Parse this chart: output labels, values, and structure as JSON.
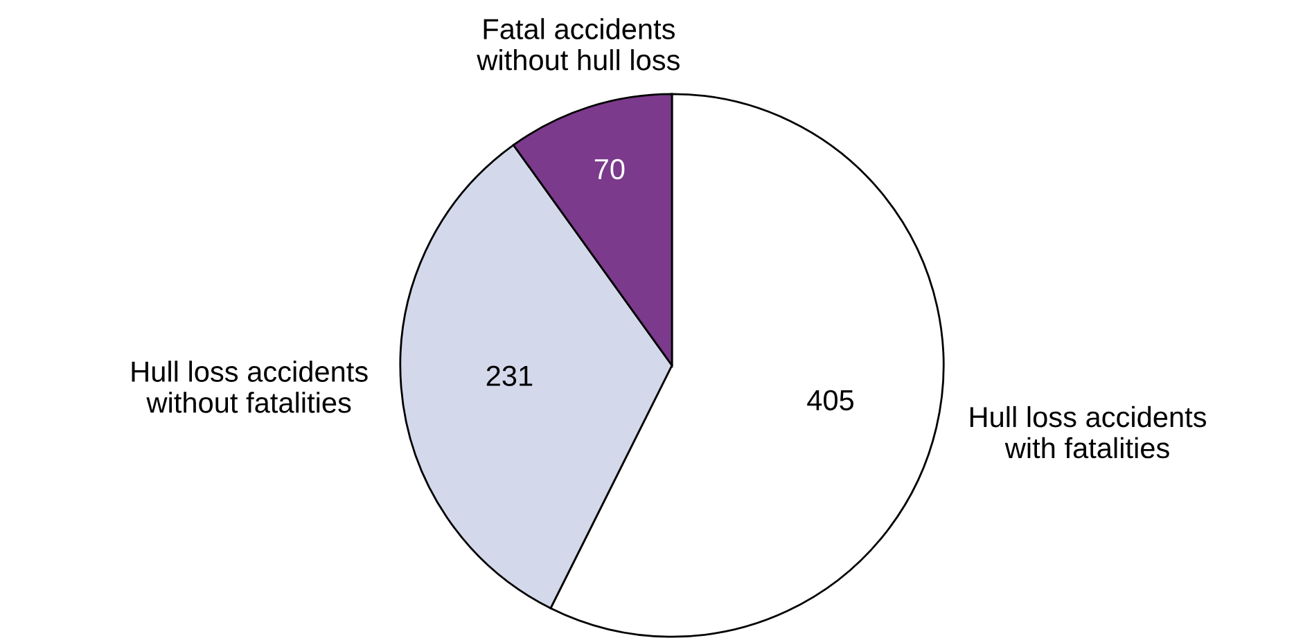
{
  "chart_data": {
    "type": "pie",
    "categories": [
      "Hull loss accidents\nwith fatalities",
      "Hull loss accidents\nwithout fatalities",
      "Fatal accidents\nwithout hull loss"
    ],
    "values": [
      405,
      231,
      70
    ],
    "colors": [
      "#ffffff",
      "#d3d8ea",
      "#7b3a8b"
    ],
    "data_labels": true
  }
}
